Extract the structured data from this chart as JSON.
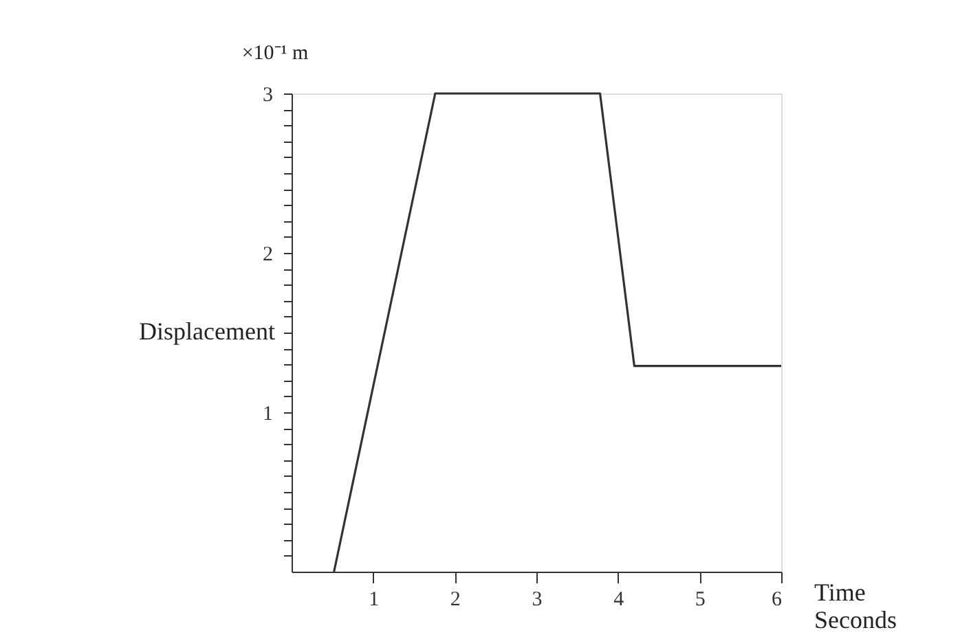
{
  "chart_data": {
    "type": "line",
    "xlabel": "Time Seconds",
    "ylabel": "Displacement",
    "annotations": [
      "×10⁻¹ m"
    ],
    "x": [
      0.52,
      1.76,
      3.78,
      4.2,
      6.0
    ],
    "series": [
      {
        "color": "#333333",
        "values": [
          0,
          3.0,
          3.0,
          1.29,
          1.29
        ]
      }
    ],
    "xlim": [
      0,
      6
    ],
    "xticks": [
      1,
      2,
      3,
      4,
      5,
      6
    ],
    "ylim": [
      0,
      3
    ],
    "yticks": [
      {
        "value": 0.1,
        "label": null
      },
      {
        "value": 0.2,
        "label": null
      },
      {
        "value": 0.3,
        "label": null
      },
      {
        "value": 0.4,
        "label": null
      },
      {
        "value": 0.5,
        "label": null
      },
      {
        "value": 0.6,
        "label": null
      },
      {
        "value": 0.7,
        "label": null
      },
      {
        "value": 0.8,
        "label": null
      },
      {
        "value": 0.9,
        "label": null
      },
      1,
      {
        "value": 1.1,
        "label": null
      },
      {
        "value": 1.2,
        "label": null
      },
      {
        "value": 1.3,
        "label": null
      },
      {
        "value": 1.4,
        "label": null
      },
      {
        "value": 1.5,
        "label": null
      },
      {
        "value": 1.6,
        "label": null
      },
      {
        "value": 1.7,
        "label": null
      },
      {
        "value": 1.8,
        "label": null
      },
      {
        "value": 1.9,
        "label": null
      },
      2,
      {
        "value": 2.1,
        "label": null
      },
      {
        "value": 2.2,
        "label": null
      },
      {
        "value": 2.3,
        "label": null
      },
      {
        "value": 2.4,
        "label": null
      },
      {
        "value": 2.5,
        "label": null
      },
      {
        "value": 2.6,
        "label": null
      },
      {
        "value": 2.7,
        "label": null
      },
      {
        "value": 2.8,
        "label": null
      },
      {
        "value": 2.9,
        "label": null
      },
      3
    ],
    "grid": false,
    "marker": "none",
    "line_style": "solid"
  }
}
